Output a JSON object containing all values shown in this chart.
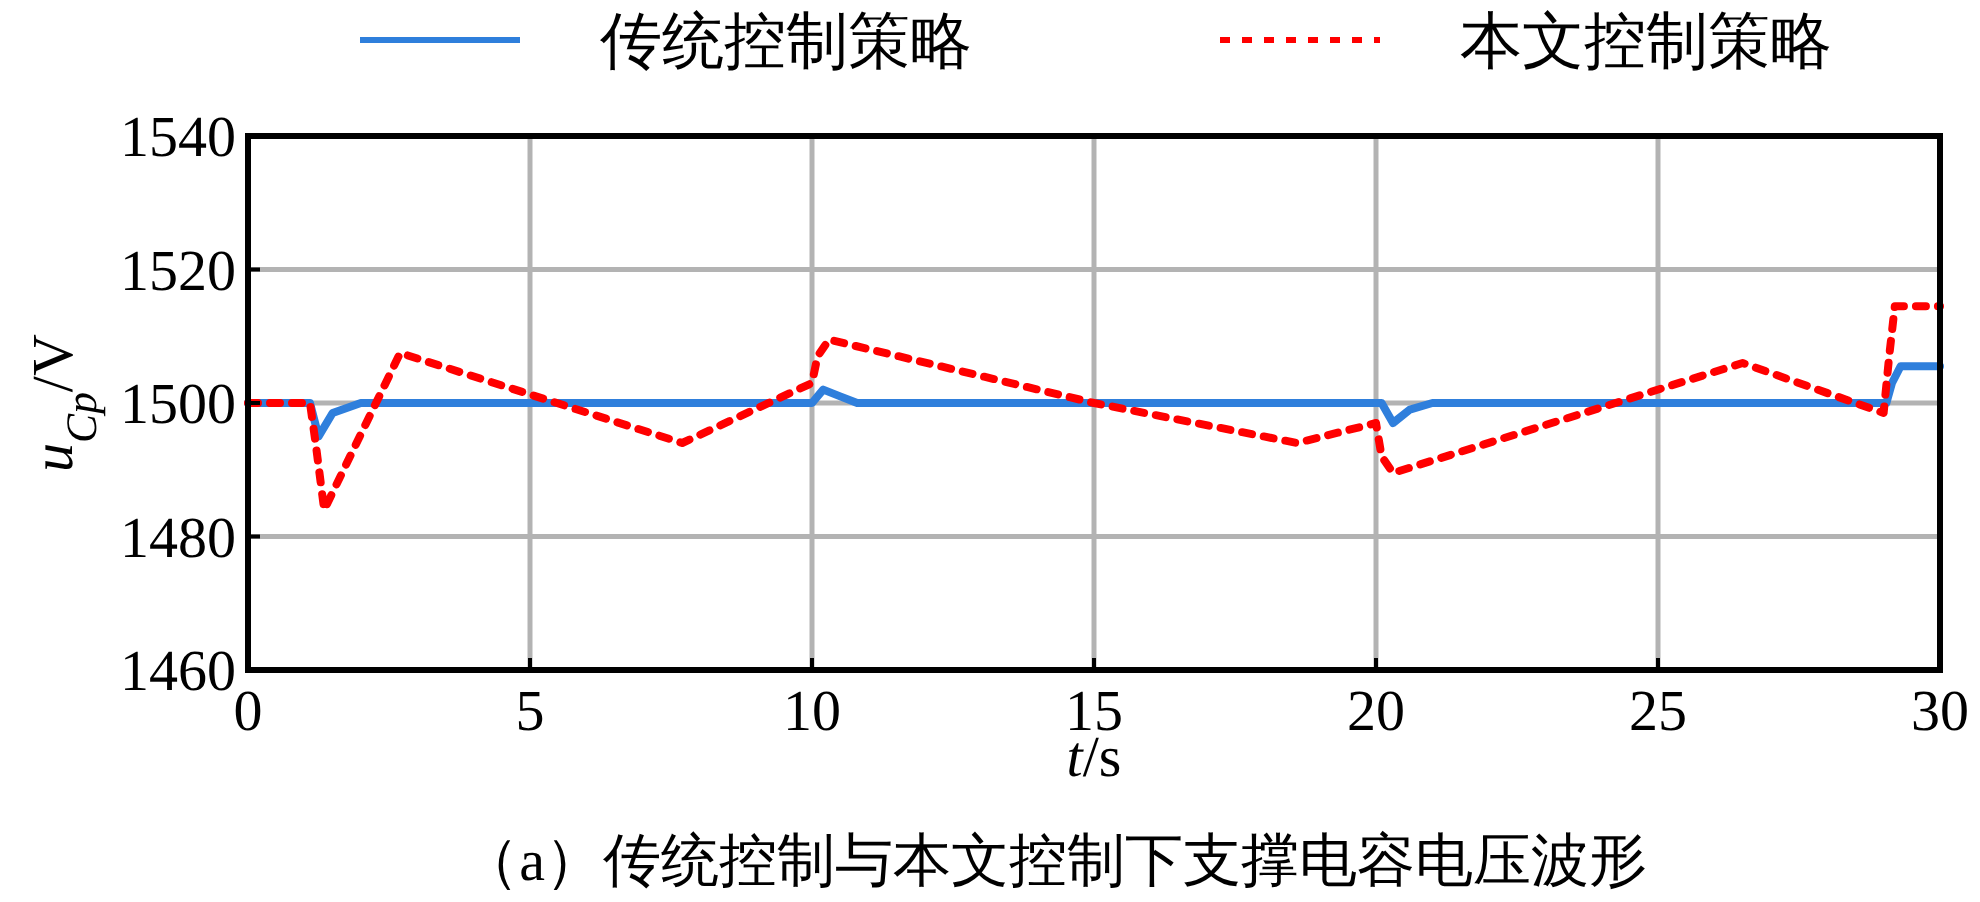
{
  "chart_data": {
    "type": "line",
    "xlabel": "*t*/s",
    "ylabel": "*u*$_{Cp}$/V",
    "annotations": [
      "（a）传统控制与本文控制下支撑电容电压波形"
    ],
    "xlim": [
      0,
      30
    ],
    "ylim": [
      1460,
      1540
    ],
    "xticks": [
      0,
      5,
      10,
      15,
      20,
      25,
      30
    ],
    "yticks": [
      1460,
      1480,
      1500,
      1520,
      1540
    ],
    "grid": true,
    "legend": "top",
    "series": [
      {
        "name": "传统控制策略",
        "color": "#2f7fdc",
        "line_style": "solid",
        "x": [
          0,
          1.1,
          1.25,
          1.5,
          2.0,
          10.0,
          10.2,
          10.5,
          10.8,
          20.1,
          20.3,
          20.6,
          21.0,
          29.05,
          29.15,
          29.3,
          30
        ],
        "values": [
          1500,
          1500,
          1495,
          1498.5,
          1500,
          1500,
          1502,
          1501,
          1500,
          1500,
          1497,
          1499,
          1500,
          1500,
          1503,
          1505.5,
          1505.5
        ]
      },
      {
        "name": "本文控制策略",
        "color": "#ff0000",
        "line_style": "dashed",
        "x": [
          0,
          1.1,
          1.2,
          1.35,
          2.7,
          7.7,
          10.0,
          10.1,
          10.3,
          15,
          18.6,
          20.0,
          20.1,
          20.3,
          26.5,
          29.0,
          29.1,
          29.2,
          30
        ],
        "values": [
          1500,
          1500,
          1494,
          1484,
          1507.5,
          1494,
          1503,
          1507,
          1509.5,
          1500,
          1494,
          1497,
          1492,
          1489.5,
          1506,
          1498.5,
          1507,
          1514.5,
          1514.5
        ]
      }
    ]
  }
}
